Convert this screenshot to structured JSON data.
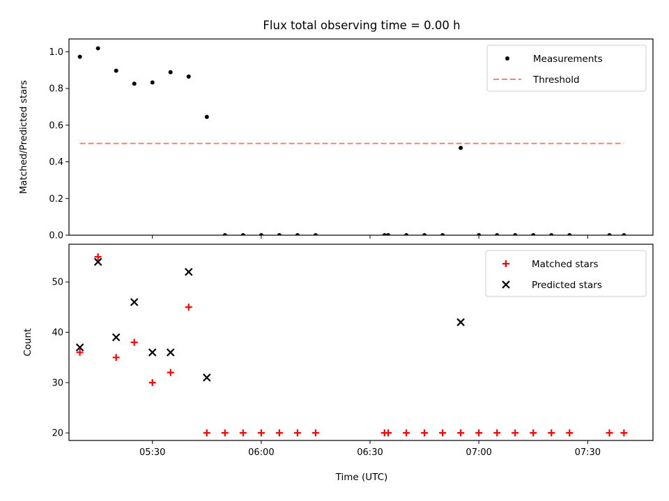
{
  "chart_data": {
    "type": "scatter",
    "title": "Flux total observing time = 0.00 h",
    "xlabel": "Time (UTC)",
    "x_ticks": [
      "05:30",
      "06:00",
      "06:30",
      "07:00",
      "07:30"
    ],
    "xlim": [
      "05:07",
      "07:48"
    ],
    "panels": [
      {
        "ylabel": "Matched/Predicted stars",
        "ylim": [
          0,
          1.07
        ],
        "y_ticks": [
          "0.0",
          "0.2",
          "0.4",
          "0.6",
          "0.8",
          "1.0"
        ],
        "y_tick_values": [
          0,
          0.2,
          0.4,
          0.6,
          0.8,
          1.0
        ],
        "legend_position": "upper right",
        "series": [
          {
            "name": "Measurements",
            "marker": "dot",
            "color": "#000000",
            "points": [
              {
                "x": "05:10",
                "y": 0.973
              },
              {
                "x": "05:15",
                "y": 1.019
              },
              {
                "x": "05:20",
                "y": 0.897
              },
              {
                "x": "05:25",
                "y": 0.826
              },
              {
                "x": "05:30",
                "y": 0.833
              },
              {
                "x": "05:35",
                "y": 0.889
              },
              {
                "x": "05:40",
                "y": 0.865
              },
              {
                "x": "05:45",
                "y": 0.645
              },
              {
                "x": "05:50",
                "y": 0
              },
              {
                "x": "05:55",
                "y": 0
              },
              {
                "x": "06:00",
                "y": 0
              },
              {
                "x": "06:05",
                "y": 0
              },
              {
                "x": "06:10",
                "y": 0
              },
              {
                "x": "06:15",
                "y": 0
              },
              {
                "x": "06:34",
                "y": 0
              },
              {
                "x": "06:35",
                "y": 0
              },
              {
                "x": "06:40",
                "y": 0
              },
              {
                "x": "06:45",
                "y": 0
              },
              {
                "x": "06:50",
                "y": 0
              },
              {
                "x": "06:55",
                "y": 0.476
              },
              {
                "x": "07:00",
                "y": 0
              },
              {
                "x": "07:05",
                "y": 0
              },
              {
                "x": "07:10",
                "y": 0
              },
              {
                "x": "07:15",
                "y": 0
              },
              {
                "x": "07:20",
                "y": 0
              },
              {
                "x": "07:25",
                "y": 0
              },
              {
                "x": "07:36",
                "y": 0
              },
              {
                "x": "07:40",
                "y": 0
              }
            ]
          },
          {
            "name": "Threshold",
            "marker": "dashed-line",
            "color": "#ff7f7f",
            "points": [
              {
                "x": "05:10",
                "y": 0.5
              },
              {
                "x": "07:40",
                "y": 0.5
              }
            ]
          }
        ]
      },
      {
        "ylabel": "Count",
        "ylim": [
          18.5,
          57.5
        ],
        "y_ticks": [
          "20",
          "30",
          "40",
          "50"
        ],
        "y_tick_values": [
          20,
          30,
          40,
          50
        ],
        "legend_position": "upper right",
        "series": [
          {
            "name": "Matched stars",
            "marker": "plus",
            "color": "#ff0000",
            "points": [
              {
                "x": "05:10",
                "y": 36
              },
              {
                "x": "05:15",
                "y": 55
              },
              {
                "x": "05:20",
                "y": 35
              },
              {
                "x": "05:25",
                "y": 38
              },
              {
                "x": "05:30",
                "y": 30
              },
              {
                "x": "05:35",
                "y": 32
              },
              {
                "x": "05:40",
                "y": 45
              },
              {
                "x": "05:45",
                "y": 20
              },
              {
                "x": "05:50",
                "y": 20
              },
              {
                "x": "05:55",
                "y": 20
              },
              {
                "x": "06:00",
                "y": 20
              },
              {
                "x": "06:05",
                "y": 20
              },
              {
                "x": "06:10",
                "y": 20
              },
              {
                "x": "06:15",
                "y": 20
              },
              {
                "x": "06:34",
                "y": 20
              },
              {
                "x": "06:35",
                "y": 20
              },
              {
                "x": "06:40",
                "y": 20
              },
              {
                "x": "06:45",
                "y": 20
              },
              {
                "x": "06:50",
                "y": 20
              },
              {
                "x": "06:55",
                "y": 20
              },
              {
                "x": "07:00",
                "y": 20
              },
              {
                "x": "07:05",
                "y": 20
              },
              {
                "x": "07:10",
                "y": 20
              },
              {
                "x": "07:15",
                "y": 20
              },
              {
                "x": "07:20",
                "y": 20
              },
              {
                "x": "07:25",
                "y": 20
              },
              {
                "x": "07:36",
                "y": 20
              },
              {
                "x": "07:40",
                "y": 20
              }
            ]
          },
          {
            "name": "Predicted stars",
            "marker": "x",
            "color": "#000000",
            "points": [
              {
                "x": "05:10",
                "y": 37
              },
              {
                "x": "05:15",
                "y": 54
              },
              {
                "x": "05:20",
                "y": 39
              },
              {
                "x": "05:25",
                "y": 46
              },
              {
                "x": "05:30",
                "y": 36
              },
              {
                "x": "05:35",
                "y": 36
              },
              {
                "x": "05:40",
                "y": 52
              },
              {
                "x": "05:45",
                "y": 31
              },
              {
                "x": "06:55",
                "y": 42
              }
            ]
          }
        ]
      }
    ]
  }
}
